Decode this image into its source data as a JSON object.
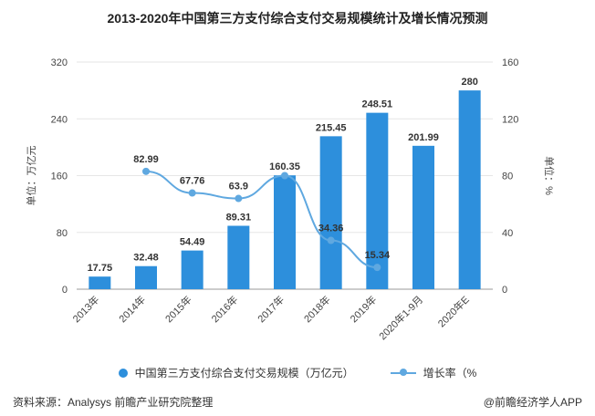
{
  "page": {
    "title": "2013-2020年中国第三方支付综合支付交易规模统计及增长情况预测",
    "source": "资料来源：Analysys 前瞻产业研究院整理",
    "brand": "@前瞻经济学人APP"
  },
  "chart_data": {
    "type": "bar",
    "categories": [
      "2013年",
      "2014年",
      "2015年",
      "2016年",
      "2017年",
      "2018年",
      "2019年",
      "2020年1-9月",
      "2020年E"
    ],
    "series": [
      {
        "name": "中国第三方支付综合支付交易规模（万亿元）",
        "type": "bar",
        "axis": "left",
        "values": [
          17.75,
          32.48,
          54.49,
          89.31,
          160.35,
          215.45,
          248.51,
          201.99,
          280
        ],
        "labels": [
          "17.75",
          "32.48",
          "54.49",
          "89.31",
          "160.35",
          "215.45",
          "248.51",
          "201.99",
          "280"
        ],
        "color": "#2d8fdc"
      },
      {
        "name": "增长率（%",
        "type": "line",
        "axis": "right",
        "values": [
          null,
          82.99,
          67.76,
          63.9,
          80.0,
          34.36,
          15.34,
          null,
          null
        ],
        "labels": [
          null,
          "82.99",
          "67.76",
          "63.9",
          null,
          "34.36",
          "15.34",
          null,
          null
        ],
        "color": "#5fa8e0"
      }
    ],
    "y_left": {
      "label": "单位：万亿元",
      "ylim": [
        0,
        320
      ],
      "ticks": [
        "0",
        "80",
        "160",
        "240",
        "320"
      ]
    },
    "y_right": {
      "label": "单位：%",
      "ylim": [
        0,
        160
      ],
      "ticks": [
        "0",
        "40",
        "80",
        "120",
        "160"
      ]
    },
    "grid": true,
    "legend_position": "bottom"
  }
}
